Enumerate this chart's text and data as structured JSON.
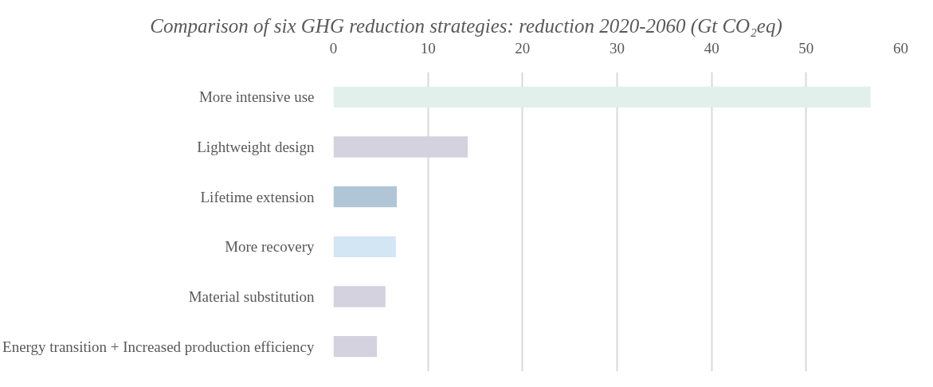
{
  "chart_data": {
    "type": "bar",
    "orientation": "horizontal",
    "title": "Comparison of  six GHG reduction strategies: reduction 2020-2060 (Gt CO₂eq)",
    "categories": [
      "More intensive use",
      "Lightweight design",
      "Lifetime extension",
      "More recovery",
      "Material substitution",
      "Energy transition + Increased production efficiency"
    ],
    "values": [
      56.8,
      14.2,
      6.7,
      6.6,
      5.5,
      4.6
    ],
    "colors": [
      "#e1f0eb",
      "#d4d2de",
      "#b0c5d6",
      "#d2e6f4",
      "#d4d2de",
      "#d4d2de"
    ],
    "xlim": [
      0,
      60
    ],
    "xticks": [
      0,
      10,
      20,
      30,
      40,
      50,
      60
    ],
    "grid": "x"
  }
}
